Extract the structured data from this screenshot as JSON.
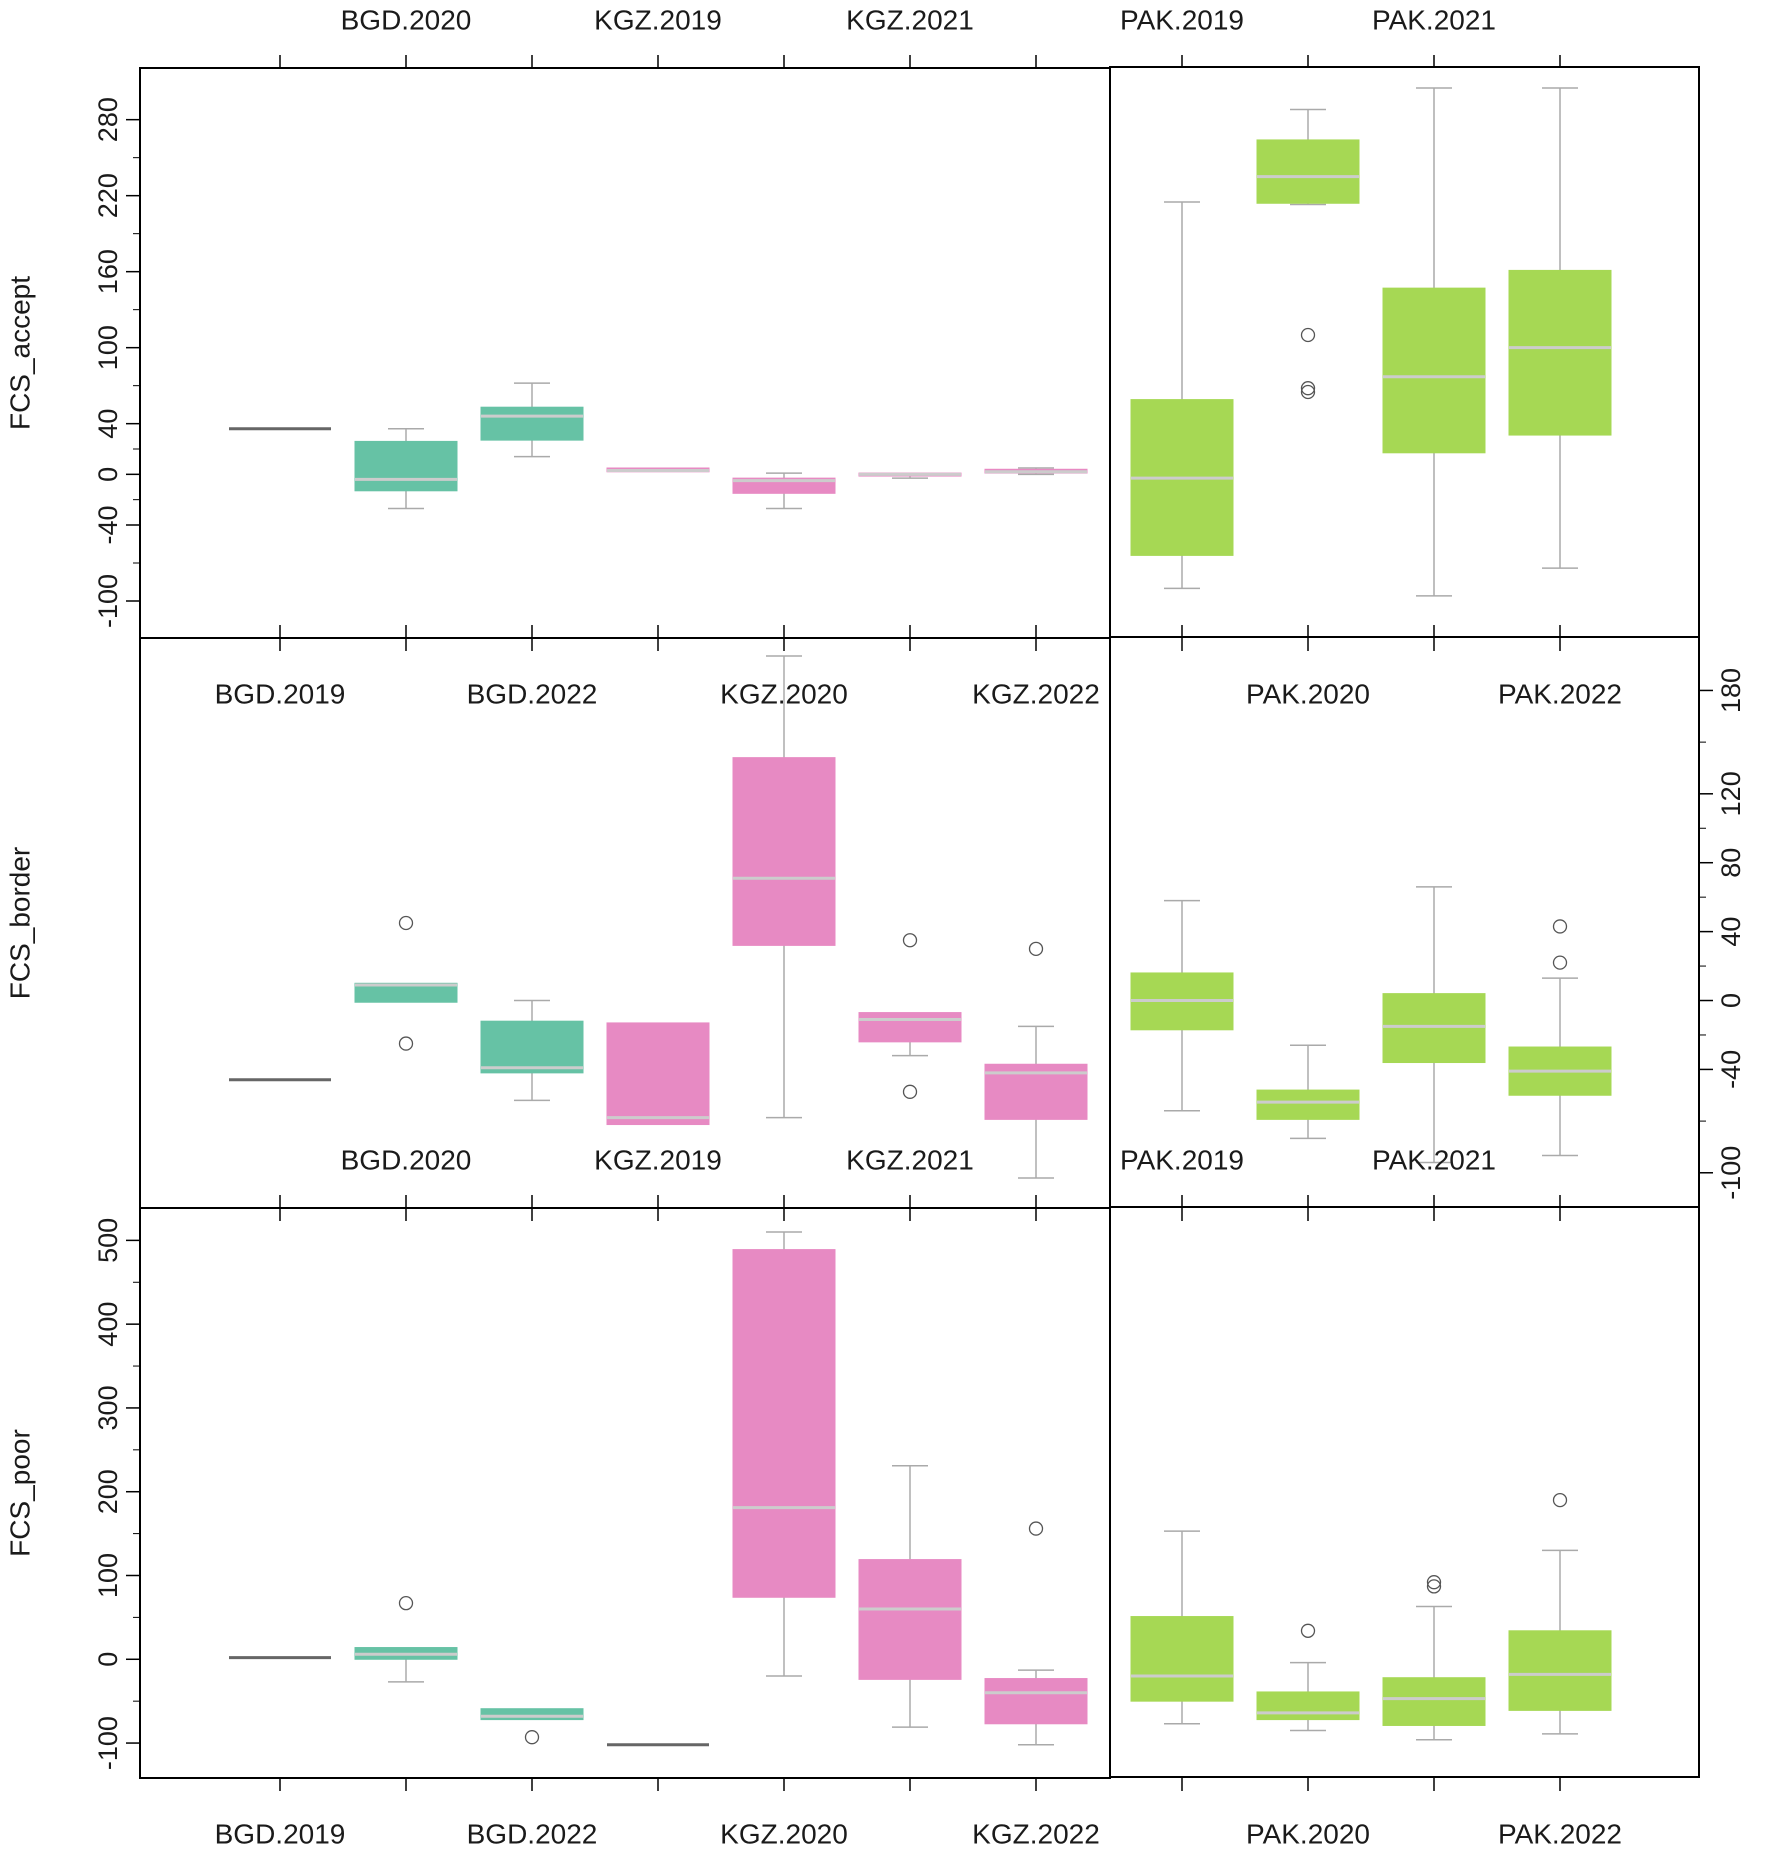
{
  "chart_data": {
    "type": "boxplot",
    "categories": [
      "BGD.2019",
      "BGD.2020",
      "BGD.2022",
      "KGZ.2019",
      "KGZ.2020",
      "KGZ.2021",
      "KGZ.2022",
      "PAK.2019",
      "PAK.2020",
      "PAK.2021",
      "PAK.2022"
    ],
    "category_labels": {
      "top": [
        "BGD.2020",
        "KGZ.2019",
        "KGZ.2021",
        "PAK.2019",
        "PAK.2021"
      ],
      "bottom": [
        "BGD.2019",
        "BGD.2022",
        "KGZ.2020",
        "KGZ.2022",
        "PAK.2020",
        "PAK.2022"
      ]
    },
    "colors": {
      "BGD": "#66c2a5",
      "KGZ": "#e78ac3",
      "PAK": "#a6d854",
      "median": "#cccccc",
      "whisker": "#aaaaaa",
      "frame": "#000000"
    },
    "panels": [
      {
        "ylabel": "FCS_accept",
        "yaxis_side": "left",
        "ylim": [
          -115,
          305
        ],
        "yticks": [
          -100,
          -40,
          0,
          40,
          100,
          160,
          220,
          280
        ],
        "boxes": [
          {
            "cat": "BGD.2019",
            "group": "BGD",
            "min": 36,
            "q1": 36,
            "median": 36,
            "q3": 36,
            "max": 36,
            "outliers": []
          },
          {
            "cat": "BGD.2020",
            "group": "BGD",
            "min": -27,
            "q1": -13,
            "median": -4,
            "q3": 26,
            "max": 36,
            "outliers": []
          },
          {
            "cat": "BGD.2022",
            "group": "BGD",
            "min": 14,
            "q1": 27,
            "median": 46,
            "q3": 53,
            "max": 72,
            "outliers": []
          },
          {
            "cat": "KGZ.2019",
            "group": "KGZ",
            "min": 2,
            "q1": 2,
            "median": 3,
            "q3": 5,
            "max": 5,
            "outliers": []
          },
          {
            "cat": "KGZ.2020",
            "group": "KGZ",
            "min": -27,
            "q1": -15,
            "median": -5,
            "q3": -3,
            "max": 1,
            "outliers": []
          },
          {
            "cat": "KGZ.2021",
            "group": "KGZ",
            "min": -3,
            "q1": -1,
            "median": 0,
            "q3": 1,
            "max": 1,
            "outliers": []
          },
          {
            "cat": "KGZ.2022",
            "group": "KGZ",
            "min": 0,
            "q1": 1,
            "median": 2,
            "q3": 4,
            "max": 5,
            "outliers": []
          },
          {
            "cat": "PAK.2019",
            "group": "PAK",
            "min": -90,
            "q1": -64,
            "median": -3,
            "q3": 59,
            "max": 215,
            "outliers": []
          },
          {
            "cat": "PAK.2020",
            "group": "PAK",
            "min": 213,
            "q1": 214,
            "median": 235,
            "q3": 264,
            "max": 288,
            "outliers": [
              110,
              68,
              65
            ]
          },
          {
            "cat": "PAK.2021",
            "group": "PAK",
            "min": -96,
            "q1": 17,
            "median": 77,
            "q3": 147,
            "max": 305,
            "outliers": []
          },
          {
            "cat": "PAK.2022",
            "group": "PAK",
            "min": -74,
            "q1": 31,
            "median": 100,
            "q3": 161,
            "max": 305,
            "outliers": []
          }
        ]
      },
      {
        "ylabel": "FCS_border",
        "yaxis_side": "right",
        "ylim": [
          -110,
          200
        ],
        "yticks": [
          -100,
          -40,
          0,
          40,
          80,
          120,
          180
        ],
        "boxes": [
          {
            "cat": "BGD.2019",
            "group": "BGD",
            "min": -46,
            "q1": -46,
            "median": -46,
            "q3": -46,
            "max": -46,
            "outliers": []
          },
          {
            "cat": "BGD.2020",
            "group": "BGD",
            "min": -1,
            "q1": -1,
            "median": 9,
            "q3": 10,
            "max": 10,
            "outliers": [
              45,
              -25
            ]
          },
          {
            "cat": "BGD.2022",
            "group": "BGD",
            "min": -58,
            "q1": -42,
            "median": -39,
            "q3": -12,
            "max": 0,
            "outliers": []
          },
          {
            "cat": "KGZ.2019",
            "group": "KGZ",
            "min": -72,
            "q1": -72,
            "median": -68,
            "q3": -13,
            "max": -13,
            "outliers": []
          },
          {
            "cat": "KGZ.2020",
            "group": "KGZ",
            "min": -68,
            "q1": 32,
            "median": 71,
            "q3": 141,
            "max": 200,
            "outliers": []
          },
          {
            "cat": "KGZ.2021",
            "group": "KGZ",
            "min": -32,
            "q1": -24,
            "median": -11,
            "q3": -7,
            "max": -7,
            "outliers": [
              35,
              -53
            ]
          },
          {
            "cat": "KGZ.2022",
            "group": "KGZ",
            "min": -103,
            "q1": -69,
            "median": -42,
            "q3": -37,
            "max": -15,
            "outliers": [
              30
            ]
          },
          {
            "cat": "PAK.2019",
            "group": "PAK",
            "min": -64,
            "q1": -17,
            "median": 0,
            "q3": 16,
            "max": 58,
            "outliers": []
          },
          {
            "cat": "PAK.2020",
            "group": "PAK",
            "min": -80,
            "q1": -69,
            "median": -59,
            "q3": -52,
            "max": -26,
            "outliers": []
          },
          {
            "cat": "PAK.2021",
            "group": "PAK",
            "min": -94,
            "q1": -36,
            "median": -15,
            "q3": 4,
            "max": 66,
            "outliers": []
          },
          {
            "cat": "PAK.2022",
            "group": "PAK",
            "min": -90,
            "q1": -55,
            "median": -41,
            "q3": -27,
            "max": 13,
            "outliers": [
              43,
              22
            ]
          }
        ]
      },
      {
        "ylabel": "FCS_poor",
        "yaxis_side": "left",
        "ylim": [
          -125,
          510
        ],
        "yticks": [
          -100,
          0,
          100,
          200,
          300,
          400,
          500
        ],
        "boxes": [
          {
            "cat": "BGD.2019",
            "group": "BGD",
            "min": 2,
            "q1": 2,
            "median": 2,
            "q3": 2,
            "max": 2,
            "outliers": []
          },
          {
            "cat": "BGD.2020",
            "group": "BGD",
            "min": -27,
            "q1": 0,
            "median": 6,
            "q3": 14,
            "max": 14,
            "outliers": [
              67
            ]
          },
          {
            "cat": "BGD.2022",
            "group": "BGD",
            "min": -72,
            "q1": -72,
            "median": -68,
            "q3": -59,
            "max": -59,
            "outliers": [
              -93
            ]
          },
          {
            "cat": "KGZ.2019",
            "group": "KGZ",
            "min": -102,
            "q1": -102,
            "median": -102,
            "q3": -102,
            "max": -102,
            "outliers": []
          },
          {
            "cat": "KGZ.2020",
            "group": "KGZ",
            "min": -20,
            "q1": 74,
            "median": 181,
            "q3": 489,
            "max": 510,
            "outliers": []
          },
          {
            "cat": "KGZ.2021",
            "group": "KGZ",
            "min": -81,
            "q1": -24,
            "median": 60,
            "q3": 119,
            "max": 231,
            "outliers": []
          },
          {
            "cat": "KGZ.2022",
            "group": "KGZ",
            "min": -102,
            "q1": -77,
            "median": -40,
            "q3": -23,
            "max": -13,
            "outliers": [
              156
            ]
          },
          {
            "cat": "PAK.2019",
            "group": "PAK",
            "min": -77,
            "q1": -50,
            "median": -20,
            "q3": 51,
            "max": 153,
            "outliers": []
          },
          {
            "cat": "PAK.2020",
            "group": "PAK",
            "min": -85,
            "q1": -72,
            "median": -64,
            "q3": -39,
            "max": -4,
            "outliers": [
              34
            ]
          },
          {
            "cat": "PAK.2021",
            "group": "PAK",
            "min": -96,
            "q1": -79,
            "median": -47,
            "q3": -22,
            "max": 63,
            "outliers": [
              92,
              87
            ]
          },
          {
            "cat": "PAK.2022",
            "group": "PAK",
            "min": -89,
            "q1": -61,
            "median": -18,
            "q3": 34,
            "max": 130,
            "outliers": [
              190
            ]
          }
        ]
      }
    ]
  }
}
